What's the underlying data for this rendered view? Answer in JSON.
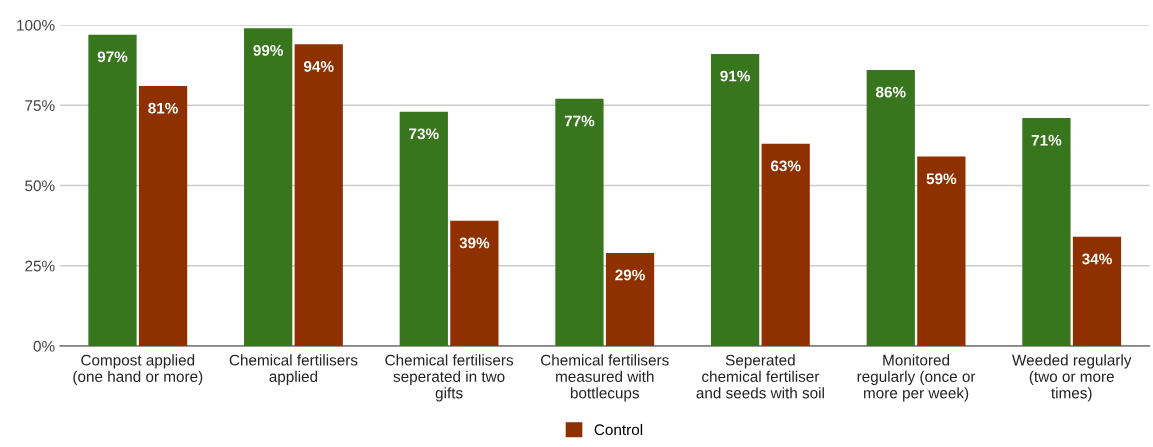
{
  "chart_data": {
    "type": "bar",
    "categories": [
      "Compost applied\n(one hand or more)",
      "Chemical fertilisers\napplied",
      "Chemical fertilisers\nseperated in two\ngifts",
      "Chemical fertilisers\nmeasured with\nbottlecups",
      "Seperated\nchemical fertiliser\nand seeds with soil",
      "Monitored\nregularly (once or\nmore per week)",
      "Weeded regularly\n(two or more\ntimes)"
    ],
    "series": [
      {
        "color": "#38761d",
        "values": [
          97,
          99,
          73,
          77,
          91,
          86,
          71
        ],
        "value_labels": [
          "97%",
          "99%",
          "73%",
          "77%",
          "91%",
          "86%",
          "71%"
        ]
      },
      {
        "name": "Control",
        "color": "#8f3000",
        "values": [
          81,
          94,
          39,
          29,
          63,
          59,
          34
        ],
        "value_labels": [
          "81%",
          "94%",
          "39%",
          "29%",
          "63%",
          "59%",
          "34%"
        ]
      }
    ],
    "ylim": [
      0,
      100
    ],
    "yticks": [
      {
        "value": 0,
        "label": "0%"
      },
      {
        "value": 25,
        "label": "25%"
      },
      {
        "value": 50,
        "label": "50%"
      },
      {
        "value": 75,
        "label": "75%"
      },
      {
        "value": 100,
        "label": "100%"
      }
    ],
    "grid": "y",
    "legend": "bottom"
  }
}
